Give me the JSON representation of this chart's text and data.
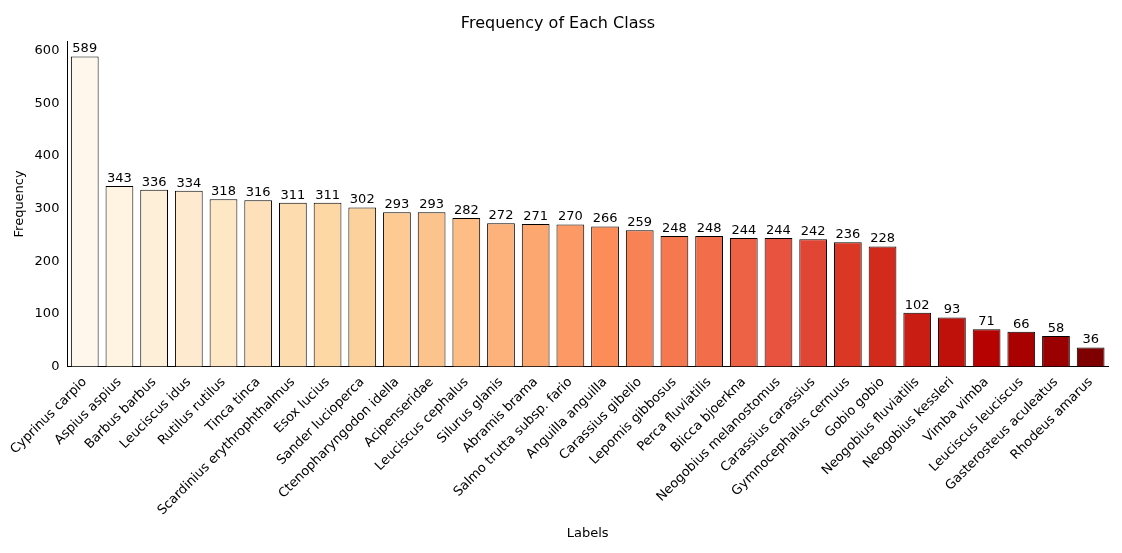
{
  "chart_data": {
    "type": "bar",
    "title": "Frequency of Each Class",
    "xlabel": "Labels",
    "ylabel": "Frequency",
    "categories": [
      "Cyprinus carpio",
      "Aspius aspius",
      "Barbus barbus",
      "Leuciscus idus",
      "Rutilus rutilus",
      "Tinca tinca",
      "Scardinius erythrophthalmus",
      "Esox lucius",
      "Sander lucioperca",
      "Ctenopharyngodon idella",
      "Acipenseridae",
      "Leuciscus cephalus",
      "Silurus glanis",
      "Abramis brama",
      "Salmo trutta subsp. fario",
      "Anguilla anguilla",
      "Carassius gibelio",
      "Lepomis gibbosus",
      "Perca fluviatilis",
      "Blicca bjoerkna",
      "Neogobius melanostomus",
      "Carassius carassius",
      "Gymnocephalus cernuus",
      "Gobio gobio",
      "Neogobius fluviatilis",
      "Neogobius kessleri",
      "Vimba vimba",
      "Leuciscus leuciscus",
      "Gasterosteus aculeatus",
      "Rhodeus amarus"
    ],
    "values": [
      589,
      343,
      336,
      334,
      318,
      316,
      311,
      311,
      302,
      293,
      293,
      282,
      272,
      271,
      270,
      266,
      259,
      248,
      248,
      244,
      244,
      242,
      236,
      228,
      102,
      93,
      71,
      66,
      58,
      36
    ],
    "colors": [
      "#fff7ec",
      "#fff3e2",
      "#feefd9",
      "#feebcf",
      "#fee7c5",
      "#fee1ba",
      "#fddcaf",
      "#fdd7a4",
      "#fdd19b",
      "#fdca94",
      "#fdc38d",
      "#fdbd85",
      "#fdb27b",
      "#fca670",
      "#fc9964",
      "#fc8d59",
      "#f98254",
      "#f5784f",
      "#f26d4a",
      "#ed6145",
      "#e7533e",
      "#e14534",
      "#da3724",
      "#d22a1b",
      "#c91d13",
      "#bf100a",
      "#b60302",
      "#a90000",
      "#9b0000",
      "#7f0000"
    ],
    "ylim": [
      0,
      618
    ],
    "yticks": [
      0,
      100,
      200,
      300,
      400,
      500,
      600
    ],
    "grid": false,
    "data_labels": true
  }
}
